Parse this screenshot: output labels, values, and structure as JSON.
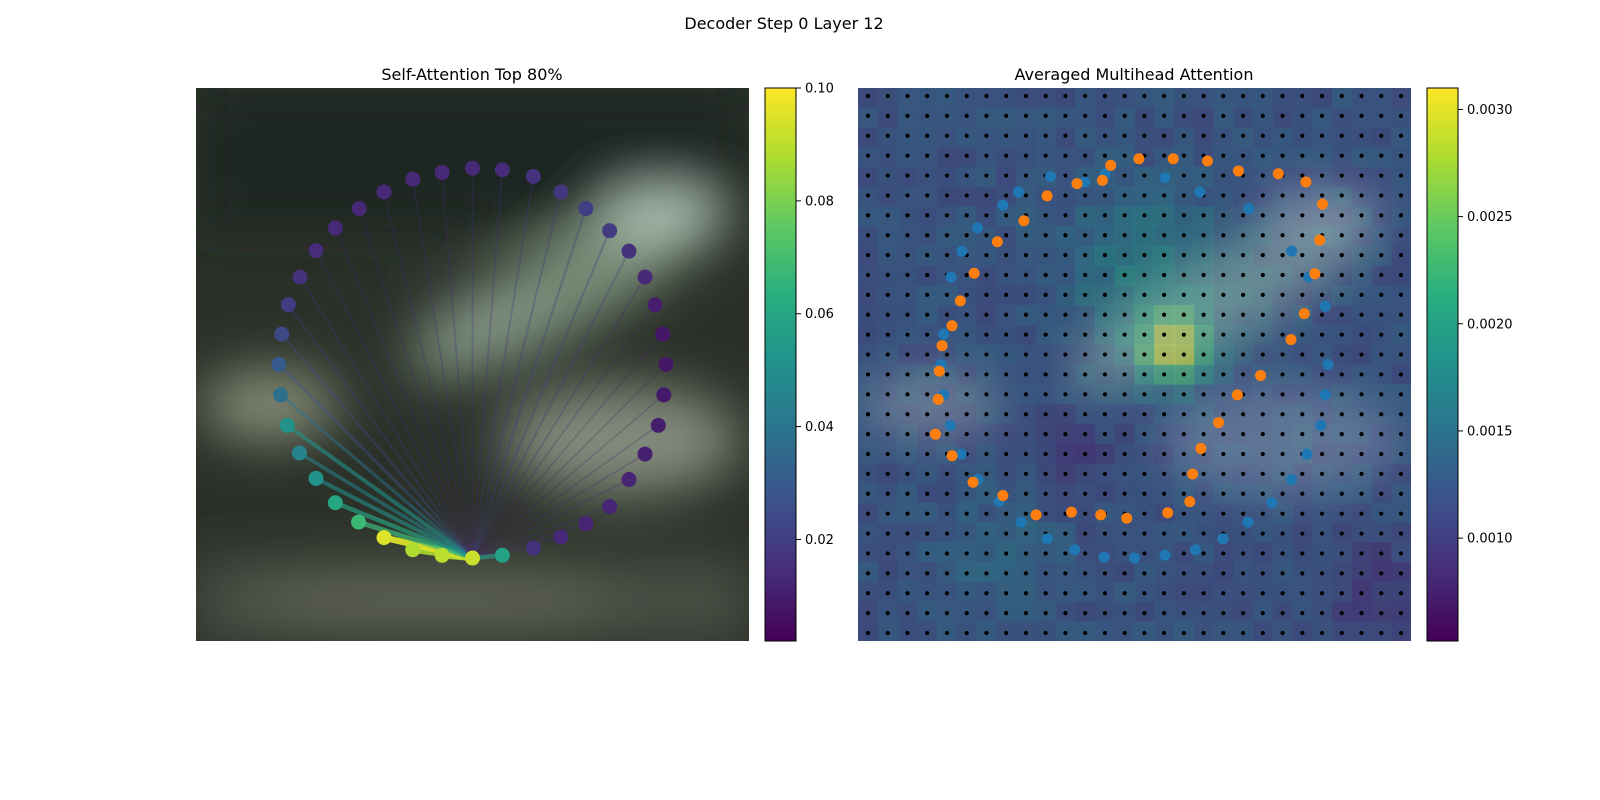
{
  "figure": {
    "suptitle": "Decoder Step 0 Layer 12"
  },
  "chart_data": [
    {
      "type": "scatter",
      "title": "Self-Attention Top 80%",
      "description_note": "",
      "query_point_index": 20,
      "points": [
        {
          "x": 0.5,
          "y": 0.145,
          "w": 0.013
        },
        {
          "x": 0.554,
          "y": 0.148,
          "w": 0.014
        },
        {
          "x": 0.61,
          "y": 0.16,
          "w": 0.016
        },
        {
          "x": 0.66,
          "y": 0.188,
          "w": 0.018
        },
        {
          "x": 0.705,
          "y": 0.218,
          "w": 0.02
        },
        {
          "x": 0.748,
          "y": 0.258,
          "w": 0.019
        },
        {
          "x": 0.783,
          "y": 0.295,
          "w": 0.016
        },
        {
          "x": 0.812,
          "y": 0.342,
          "w": 0.013
        },
        {
          "x": 0.83,
          "y": 0.392,
          "w": 0.01
        },
        {
          "x": 0.844,
          "y": 0.445,
          "w": 0.008
        },
        {
          "x": 0.85,
          "y": 0.5,
          "w": 0.008
        },
        {
          "x": 0.846,
          "y": 0.555,
          "w": 0.009
        },
        {
          "x": 0.836,
          "y": 0.61,
          "w": 0.01
        },
        {
          "x": 0.812,
          "y": 0.662,
          "w": 0.011
        },
        {
          "x": 0.783,
          "y": 0.708,
          "w": 0.012
        },
        {
          "x": 0.748,
          "y": 0.757,
          "w": 0.012
        },
        {
          "x": 0.705,
          "y": 0.788,
          "w": 0.012
        },
        {
          "x": 0.66,
          "y": 0.812,
          "w": 0.013
        },
        {
          "x": 0.61,
          "y": 0.832,
          "w": 0.016
        },
        {
          "x": 0.554,
          "y": 0.845,
          "w": 0.058
        },
        {
          "x": 0.5,
          "y": 0.85,
          "w": 0.092
        },
        {
          "x": 0.445,
          "y": 0.845,
          "w": 0.09
        },
        {
          "x": 0.392,
          "y": 0.835,
          "w": 0.088
        },
        {
          "x": 0.34,
          "y": 0.813,
          "w": 0.095
        },
        {
          "x": 0.294,
          "y": 0.785,
          "w": 0.068
        },
        {
          "x": 0.252,
          "y": 0.75,
          "w": 0.06
        },
        {
          "x": 0.217,
          "y": 0.706,
          "w": 0.052
        },
        {
          "x": 0.187,
          "y": 0.66,
          "w": 0.046
        },
        {
          "x": 0.165,
          "y": 0.61,
          "w": 0.052
        },
        {
          "x": 0.153,
          "y": 0.555,
          "w": 0.038
        },
        {
          "x": 0.15,
          "y": 0.5,
          "w": 0.03
        },
        {
          "x": 0.155,
          "y": 0.445,
          "w": 0.024
        },
        {
          "x": 0.167,
          "y": 0.392,
          "w": 0.019
        },
        {
          "x": 0.188,
          "y": 0.342,
          "w": 0.016
        },
        {
          "x": 0.217,
          "y": 0.294,
          "w": 0.014
        },
        {
          "x": 0.252,
          "y": 0.253,
          "w": 0.013
        },
        {
          "x": 0.295,
          "y": 0.218,
          "w": 0.013
        },
        {
          "x": 0.34,
          "y": 0.188,
          "w": 0.013
        },
        {
          "x": 0.392,
          "y": 0.165,
          "w": 0.013
        },
        {
          "x": 0.445,
          "y": 0.153,
          "w": 0.013
        }
      ],
      "colorbar": {
        "ticks": [
          0.02,
          0.04,
          0.06,
          0.08,
          0.1
        ],
        "tick_labels": [
          "0.02",
          "0.04",
          "0.06",
          "0.08",
          "0.10"
        ],
        "vmin": 0.002,
        "vmax": 0.1,
        "colormap": "viridis"
      }
    },
    {
      "type": "heatmap",
      "title": "Averaged Multihead Attention",
      "grid_cells": 28,
      "hotspot": {
        "x": 0.57,
        "y": 0.47,
        "value": 0.0031
      },
      "blue_points": [
        {
          "x": 0.447,
          "y": 0.155
        },
        {
          "x": 0.555,
          "y": 0.162
        },
        {
          "x": 0.348,
          "y": 0.16
        },
        {
          "x": 0.41,
          "y": 0.17
        },
        {
          "x": 0.618,
          "y": 0.188
        },
        {
          "x": 0.29,
          "y": 0.188
        },
        {
          "x": 0.707,
          "y": 0.218
        },
        {
          "x": 0.262,
          "y": 0.212
        },
        {
          "x": 0.216,
          "y": 0.253
        },
        {
          "x": 0.784,
          "y": 0.295
        },
        {
          "x": 0.188,
          "y": 0.295
        },
        {
          "x": 0.815,
          "y": 0.342
        },
        {
          "x": 0.168,
          "y": 0.342
        },
        {
          "x": 0.845,
          "y": 0.395
        },
        {
          "x": 0.155,
          "y": 0.445
        },
        {
          "x": 0.85,
          "y": 0.5
        },
        {
          "x": 0.15,
          "y": 0.5
        },
        {
          "x": 0.845,
          "y": 0.555
        },
        {
          "x": 0.155,
          "y": 0.555
        },
        {
          "x": 0.837,
          "y": 0.61
        },
        {
          "x": 0.167,
          "y": 0.61
        },
        {
          "x": 0.812,
          "y": 0.662
        },
        {
          "x": 0.187,
          "y": 0.662
        },
        {
          "x": 0.784,
          "y": 0.708
        },
        {
          "x": 0.217,
          "y": 0.708
        },
        {
          "x": 0.748,
          "y": 0.75
        },
        {
          "x": 0.255,
          "y": 0.748
        },
        {
          "x": 0.705,
          "y": 0.785
        },
        {
          "x": 0.295,
          "y": 0.785
        },
        {
          "x": 0.66,
          "y": 0.815
        },
        {
          "x": 0.342,
          "y": 0.815
        },
        {
          "x": 0.61,
          "y": 0.835
        },
        {
          "x": 0.392,
          "y": 0.835
        },
        {
          "x": 0.555,
          "y": 0.845
        },
        {
          "x": 0.445,
          "y": 0.848
        },
        {
          "x": 0.5,
          "y": 0.85
        }
      ],
      "orange_points": [
        {
          "x": 0.508,
          "y": 0.128
        },
        {
          "x": 0.57,
          "y": 0.128
        },
        {
          "x": 0.632,
          "y": 0.132
        },
        {
          "x": 0.457,
          "y": 0.14
        },
        {
          "x": 0.688,
          "y": 0.15
        },
        {
          "x": 0.76,
          "y": 0.155
        },
        {
          "x": 0.396,
          "y": 0.173
        },
        {
          "x": 0.442,
          "y": 0.167
        },
        {
          "x": 0.81,
          "y": 0.17
        },
        {
          "x": 0.342,
          "y": 0.195
        },
        {
          "x": 0.84,
          "y": 0.21
        },
        {
          "x": 0.3,
          "y": 0.24
        },
        {
          "x": 0.835,
          "y": 0.275
        },
        {
          "x": 0.252,
          "y": 0.278
        },
        {
          "x": 0.826,
          "y": 0.336
        },
        {
          "x": 0.21,
          "y": 0.335
        },
        {
          "x": 0.807,
          "y": 0.408
        },
        {
          "x": 0.185,
          "y": 0.385
        },
        {
          "x": 0.17,
          "y": 0.43
        },
        {
          "x": 0.783,
          "y": 0.455
        },
        {
          "x": 0.152,
          "y": 0.466
        },
        {
          "x": 0.728,
          "y": 0.52
        },
        {
          "x": 0.147,
          "y": 0.512
        },
        {
          "x": 0.686,
          "y": 0.555
        },
        {
          "x": 0.652,
          "y": 0.605
        },
        {
          "x": 0.145,
          "y": 0.563
        },
        {
          "x": 0.62,
          "y": 0.652
        },
        {
          "x": 0.14,
          "y": 0.626
        },
        {
          "x": 0.605,
          "y": 0.698
        },
        {
          "x": 0.17,
          "y": 0.665
        },
        {
          "x": 0.6,
          "y": 0.748
        },
        {
          "x": 0.208,
          "y": 0.713
        },
        {
          "x": 0.262,
          "y": 0.737
        },
        {
          "x": 0.322,
          "y": 0.772
        },
        {
          "x": 0.386,
          "y": 0.767
        },
        {
          "x": 0.439,
          "y": 0.772
        },
        {
          "x": 0.486,
          "y": 0.778
        },
        {
          "x": 0.56,
          "y": 0.768
        }
      ],
      "colorbar": {
        "ticks": [
          0.001,
          0.0015,
          0.002,
          0.0025,
          0.003
        ],
        "tick_labels": [
          "0.0010",
          "0.0015",
          "0.0020",
          "0.0025",
          "0.0030"
        ],
        "vmin": 0.00052,
        "vmax": 0.0031,
        "colormap": "viridis"
      }
    }
  ]
}
